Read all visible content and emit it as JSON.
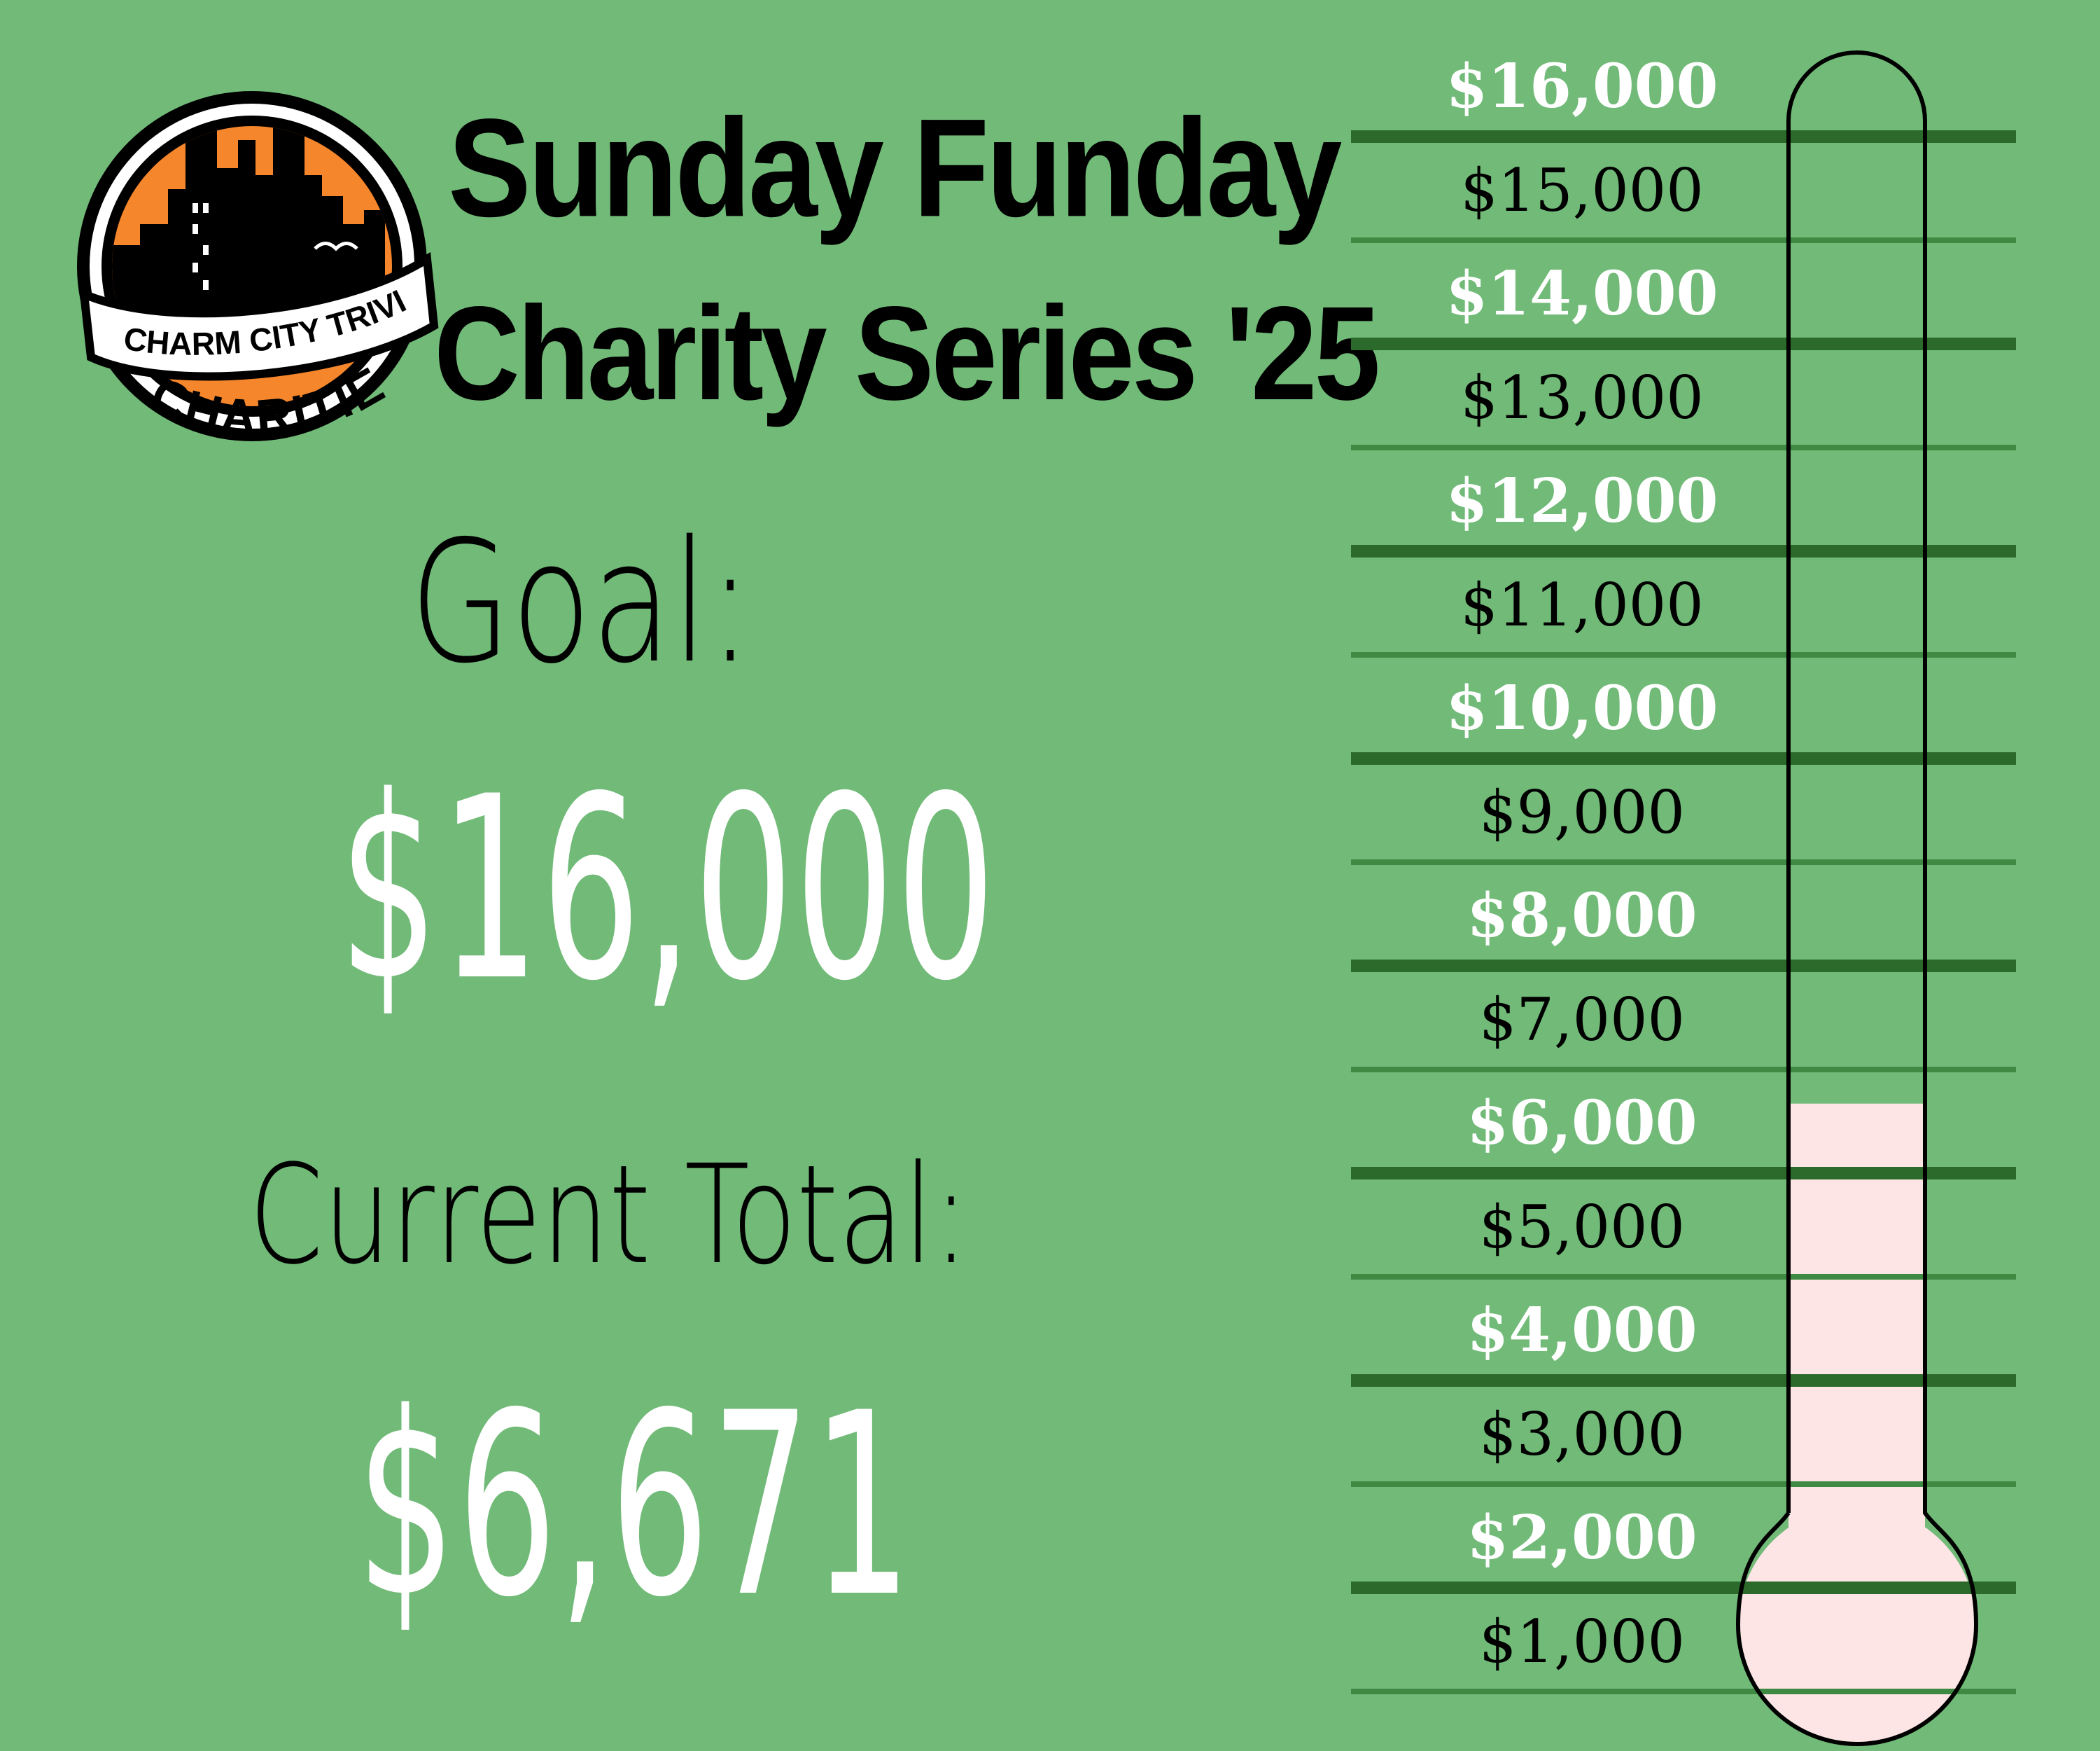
{
  "header": {
    "title_line1": "Sunday Funday",
    "title_line2": "Charity Series '25"
  },
  "logo": {
    "banner_text": "CHARM CITY TRIVIA",
    "bottom_text": "CHARITIES",
    "colors": {
      "orange": "#f5862c",
      "black": "#000000",
      "white": "#ffffff"
    }
  },
  "goal": {
    "label": "Goal:",
    "value": "$16,000"
  },
  "current": {
    "label": "Current Total:",
    "value": "$6,671"
  },
  "thermometer": {
    "goal_amount": 16000,
    "current_amount": 6671,
    "fill_color": "#fde5e5",
    "tick_labels": [
      "$16,000",
      "$15,000",
      "$14,000",
      "$13,000",
      "$12,000",
      "$11,000",
      "$10,000",
      "$9,000",
      "$8,000",
      "$7,000",
      "$6,000",
      "$5,000",
      "$4,000",
      "$3,000",
      "$2,000",
      "$1,000"
    ],
    "line_colors": {
      "major": "#2c6a2c",
      "minor": "#3f8a43"
    }
  }
}
